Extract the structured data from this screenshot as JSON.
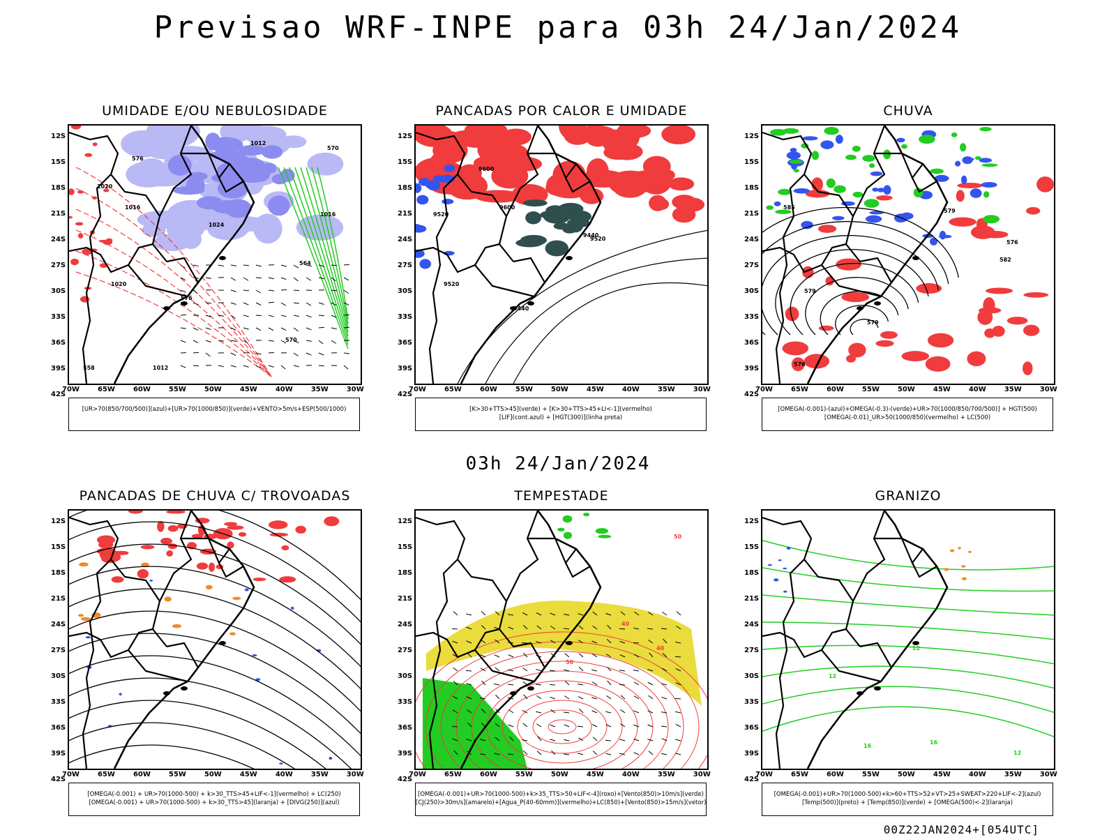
{
  "header": {
    "title": "Previsao WRF-INPE  para 03h 24/Jan/2024",
    "subtitle": "03h 24/Jan/2024",
    "footer": "00Z22JAN2024+[054UTC]"
  },
  "axes": {
    "lat_labels": [
      "12S",
      "15S",
      "18S",
      "21S",
      "24S",
      "27S",
      "30S",
      "33S",
      "36S",
      "39S",
      "42S"
    ],
    "lon_labels": [
      "70W",
      "65W",
      "60W",
      "55W",
      "50W",
      "45W",
      "40W",
      "35W",
      "30W"
    ]
  },
  "panels": [
    {
      "title": "UMIDADE E/OU NEBULOSIDADE",
      "legend": [
        "[UR>70(850/700/500)](azul)+[UR>70(1000/850)](verde)+VENTO>5m/s+ESP(500/1000)"
      ],
      "contour_labels": [
        "1012",
        "1016",
        "1020",
        "576",
        "570",
        "564",
        "558",
        "1012",
        "1016",
        "1020",
        "1024",
        "576",
        "570"
      ]
    },
    {
      "title": "PANCADAS POR CALOR E UMIDADE",
      "legend": [
        "[K>30+TTS>45](verde) + [K>30+TTS>45+LI<-1](vermelho)",
        "[LIF](cont.azul) + [HGT(300)](linha preta)"
      ],
      "contour_labels": [
        "9600",
        "9600",
        "9520",
        "9520",
        "9440",
        "9440",
        "9520"
      ]
    },
    {
      "title": "CHUVA",
      "legend": [
        "[OMEGA(-0.001)-(azul)+OMEGA(-0.3)-(verde)+UR>70(1000/850/700/500)] + HGT(500)",
        "[OMEGA(-0.01)_UR>50(1000/850)(vermelho) + LC(500)"
      ],
      "contour_labels": [
        "585",
        "579",
        "579",
        "576",
        "576",
        "582",
        "579"
      ]
    },
    {
      "title": "PANCADAS DE CHUVA C/ TROVOADAS",
      "legend": [
        "[OMEGA(-0.001) + UR>70(1000-500) + k>30_TTS>45+LIF<-1](vermelho) + LC(250)",
        "[OMEGA(-0.001) + UR>70(1000-500) + k>30_TTS>45](laranja) + [DIVG(250)](azul)"
      ],
      "contour_labels": []
    },
    {
      "title": "TEMPESTADE",
      "legend": [
        "[OMEGA(-0.001)+UR>70(1000-500)+k>35_TTS>50+LIF<-4](roxo)+[Vento(850)>10m/s](verde)",
        "[CJ(250)>30m/s](amarelo)+[Agua_P(40-60mm)](vermelho)+LC(850)+[Vento(850)>15m/s](vetor)"
      ],
      "contour_labels": [
        "40",
        "40",
        "50",
        "50"
      ]
    },
    {
      "title": "GRANIZO",
      "legend": [
        "[OMEGA(-0.001)+UR>70(1000-500)+k>60+TTS>52+VT>25+SWEAT>220+LIF<-2](azul)",
        "[Temp(500)](preto) + [Temp(850)](verde) + [OMEGA(500)<-2](laranja)"
      ],
      "contour_labels": [
        "12",
        "12",
        "16",
        "16",
        "12"
      ]
    }
  ],
  "colors": {
    "red": "#f03c3c",
    "green": "#22cc22",
    "blue": "#3355ee",
    "purple": "#8c8cf0",
    "lavender": "#b9b9f5",
    "yellow": "#e8d828",
    "orange": "#f08a28",
    "dark_teal": "#2f4f4f"
  }
}
